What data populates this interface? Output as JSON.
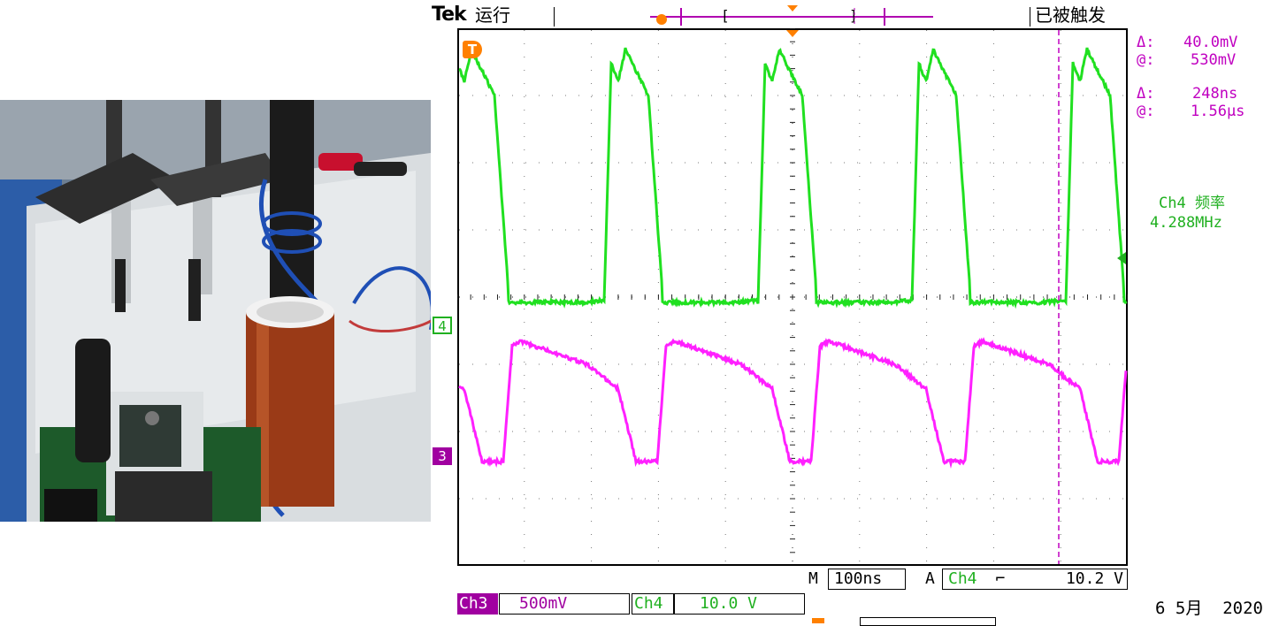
{
  "header": {
    "brand": "Tek",
    "run_state": "运行",
    "trigger_state": "已被触发"
  },
  "cursor_readout": {
    "v_delta_label": "Δ:",
    "v_delta_value": "40.0mV",
    "v_at_label": "@:",
    "v_at_value": "530mV",
    "t_delta_label": "Δ:",
    "t_delta_value": "248ns",
    "t_at_label": "@:",
    "t_at_value": "1.56µs"
  },
  "measurement": {
    "label": "Ch4 频率",
    "value": "4.288MHz"
  },
  "markers": {
    "trigger": "T",
    "ch4": "4",
    "ch3": "3"
  },
  "timebase": {
    "label": "M",
    "value": "100ns"
  },
  "trigger": {
    "label": "A",
    "source": "Ch4",
    "slope_glyph": "⌐",
    "level": "10.2 V"
  },
  "channels": [
    {
      "name": "Ch3",
      "scale": "500mV",
      "color": "#a000a0"
    },
    {
      "name": "Ch4",
      "scale": "10.0 V",
      "color": "#20b020"
    }
  ],
  "date": "6 5月  2020",
  "colors": {
    "ch3_trace": "#ff20ff",
    "ch4_trace": "#20e020",
    "cursor": "#c000c0",
    "trigger_marker": "#ff8000"
  }
}
